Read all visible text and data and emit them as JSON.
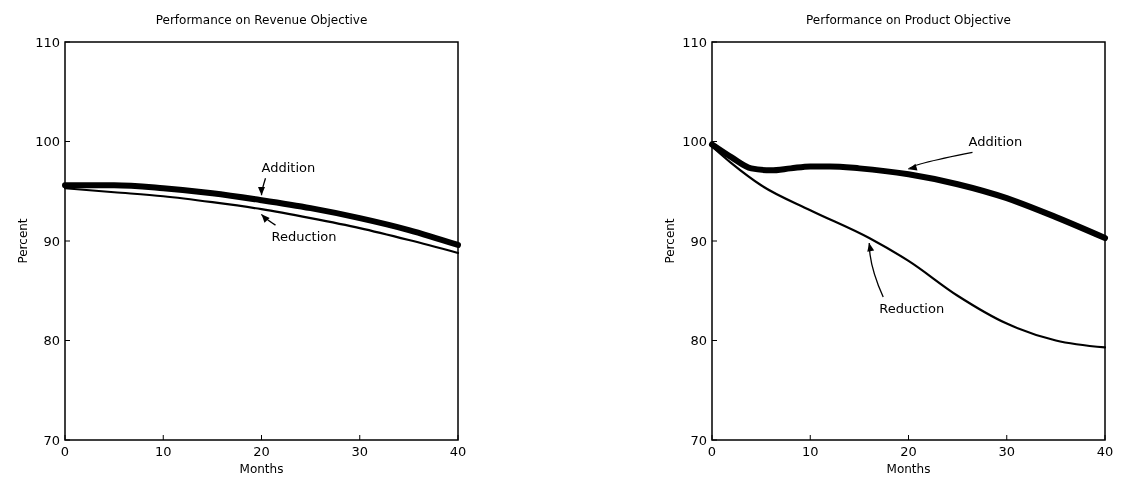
{
  "chart_data": [
    {
      "type": "line",
      "title": "Performance on Revenue Objective",
      "xlabel": "Months",
      "ylabel": "Percent",
      "xlim": [
        0,
        40
      ],
      "ylim": [
        70,
        110
      ],
      "xticks": [
        0,
        10,
        20,
        30,
        40
      ],
      "yticks": [
        70,
        80,
        90,
        100,
        110
      ],
      "grid": false,
      "series": [
        {
          "name": "Addition",
          "color": "#000000",
          "x": [
            0,
            5,
            10,
            15,
            20,
            25,
            30,
            35,
            40
          ],
          "values": [
            95.6,
            95.6,
            95.3,
            94.8,
            94.1,
            93.3,
            92.3,
            91.1,
            89.6
          ]
        },
        {
          "name": "Reduction",
          "color": "#000000",
          "x": [
            0,
            5,
            10,
            15,
            20,
            25,
            30,
            35,
            40
          ],
          "values": [
            95.3,
            94.9,
            94.5,
            93.9,
            93.2,
            92.3,
            91.3,
            90.1,
            88.8
          ]
        }
      ]
    },
    {
      "type": "line",
      "title": "Performance on Product Objective",
      "xlabel": "Months",
      "ylabel": "Percent",
      "xlim": [
        0,
        40
      ],
      "ylim": [
        70,
        110
      ],
      "xticks": [
        0,
        10,
        20,
        30,
        40
      ],
      "yticks": [
        70,
        80,
        90,
        100,
        110
      ],
      "grid": false,
      "series": [
        {
          "name": "Addition",
          "color": "#000000",
          "x": [
            0,
            2,
            4,
            6,
            8,
            10,
            12,
            15,
            20,
            25,
            30,
            35,
            40
          ],
          "values": [
            99.7,
            98.4,
            97.3,
            97.1,
            97.3,
            97.5,
            97.5,
            97.3,
            96.7,
            95.7,
            94.3,
            92.4,
            90.3
          ]
        },
        {
          "name": "Reduction",
          "color": "#000000",
          "x": [
            0,
            2,
            5,
            10,
            16,
            20,
            25,
            30,
            35,
            40
          ],
          "values": [
            99.5,
            97.8,
            95.6,
            93.1,
            90.3,
            88,
            84.5,
            81.7,
            80,
            79.3
          ]
        }
      ]
    }
  ]
}
